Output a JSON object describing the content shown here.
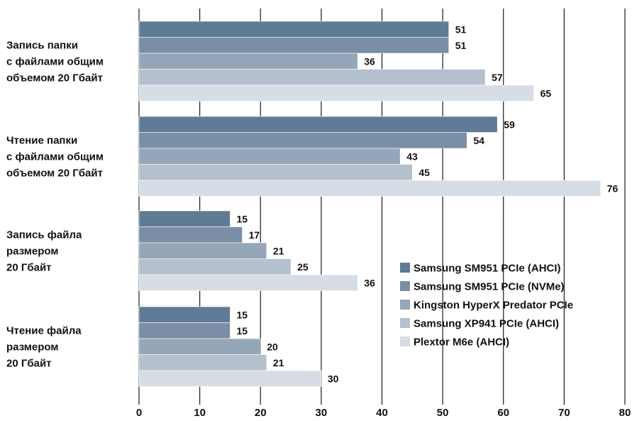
{
  "chart_data": {
    "type": "bar",
    "orientation": "horizontal",
    "categories": [
      [
        "Запись папки",
        "с файлами общим",
        "объемом 20 Гбайт"
      ],
      [
        "Чтение папки",
        "с файлами общим",
        "объемом 20 Гбайт"
      ],
      [
        "Запись файла",
        "размером",
        "20 Гбайт"
      ],
      [
        "Чтение файла",
        "размером",
        "20 Гбайт"
      ]
    ],
    "series": [
      {
        "name": "Samsung SM951 PCIe (AHCI)",
        "color": "#5f7b95",
        "values": [
          51,
          59,
          15,
          15
        ]
      },
      {
        "name": "Samsung SM951 PCIe (NVMe)",
        "color": "#7a8ea5",
        "values": [
          51,
          54,
          17,
          15
        ]
      },
      {
        "name": "Kingston HyperX Predator PCIe",
        "color": "#95a6b8",
        "values": [
          36,
          43,
          21,
          20
        ]
      },
      {
        "name": "Samsung XP941 PCIe (AHCI)",
        "color": "#b4c0cd",
        "values": [
          57,
          45,
          25,
          21
        ]
      },
      {
        "name": "Plextor M6e (AHCI)",
        "color": "#d7dde5",
        "values": [
          65,
          76,
          36,
          30
        ]
      }
    ],
    "xlim": [
      0,
      80
    ],
    "xticks": [
      "0",
      "10",
      "20",
      "30",
      "40",
      "50",
      "60",
      "70",
      "80"
    ],
    "grid": true,
    "legend_position": "bottom-right",
    "show_value_labels": true
  }
}
